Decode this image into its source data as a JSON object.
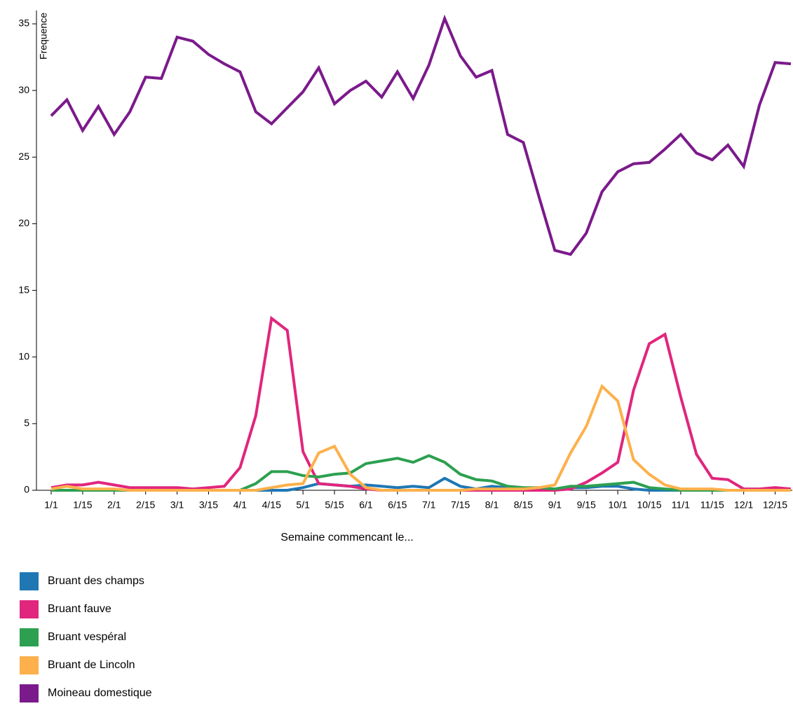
{
  "chart_data": {
    "type": "line",
    "x_label": "Semaine commencant le...",
    "y_label": "Frequence",
    "categories": [
      "1/1",
      null,
      "1/15",
      null,
      "2/1",
      null,
      "2/15",
      null,
      "3/1",
      null,
      "3/15",
      null,
      "4/1",
      null,
      "4/15",
      null,
      "5/1",
      null,
      "5/15",
      null,
      "6/1",
      null,
      "6/15",
      null,
      "7/1",
      null,
      "7/15",
      null,
      "8/1",
      null,
      "8/15",
      null,
      "9/1",
      null,
      "9/15",
      null,
      "10/1",
      null,
      "10/15",
      null,
      "11/1",
      null,
      "11/15",
      null,
      "12/1",
      null,
      "12/15",
      null
    ],
    "series": [
      {
        "name": "Bruant des champs",
        "color": "#1f77b4",
        "values": [
          0,
          0,
          0,
          0,
          0,
          0,
          0,
          0,
          0,
          0,
          0,
          0,
          0,
          0,
          0,
          0,
          0.2,
          0.5,
          0.4,
          0.3,
          0.4,
          0.3,
          0.2,
          0.3,
          0.2,
          0.9,
          0.3,
          0.1,
          0.3,
          0.2,
          0,
          0,
          0,
          0.2,
          0.2,
          0.3,
          0.3,
          0.1,
          0,
          0,
          0,
          0,
          0,
          0,
          0,
          0,
          0,
          0
        ]
      },
      {
        "name": "Bruant fauve",
        "color": "#e0267d",
        "values": [
          0.2,
          0.4,
          0.4,
          0.6,
          0.4,
          0.2,
          0.2,
          0.2,
          0.2,
          0.1,
          0.2,
          0.3,
          1.7,
          5.6,
          12.9,
          12.0,
          2.9,
          0.5,
          0.4,
          0.3,
          0.1,
          0,
          0,
          0,
          0,
          0,
          0,
          0,
          0,
          0,
          0,
          0,
          0,
          0.1,
          0.6,
          1.3,
          2.1,
          7.5,
          11.0,
          11.7,
          7.0,
          2.7,
          0.9,
          0.8,
          0.1,
          0.1,
          0.2,
          0.1
        ]
      },
      {
        "name": "Bruant vespéral",
        "color": "#2ca050",
        "values": [
          0,
          0,
          0,
          0,
          0,
          0,
          0,
          0,
          0,
          0,
          0,
          0,
          0,
          0.5,
          1.4,
          1.4,
          1.1,
          1.0,
          1.2,
          1.3,
          2.0,
          2.2,
          2.4,
          2.1,
          2.6,
          2.1,
          1.2,
          0.8,
          0.7,
          0.3,
          0.2,
          0.2,
          0.1,
          0.3,
          0.3,
          0.4,
          0.5,
          0.6,
          0.2,
          0.1,
          0,
          0,
          0,
          0,
          0,
          0,
          0,
          0
        ]
      },
      {
        "name": "Bruant de Lincoln",
        "color": "#fdb04b",
        "values": [
          0.1,
          0.3,
          0.1,
          0.1,
          0.1,
          0,
          0,
          0,
          0,
          0,
          0,
          0,
          0,
          0,
          0.2,
          0.4,
          0.5,
          2.8,
          3.3,
          1.2,
          0.2,
          0,
          0,
          0,
          0,
          0,
          0,
          0.1,
          0.1,
          0.1,
          0.1,
          0.2,
          0.4,
          2.8,
          4.8,
          7.8,
          6.7,
          2.3,
          1.2,
          0.4,
          0.1,
          0.1,
          0.1,
          0,
          0,
          0,
          0,
          0
        ]
      },
      {
        "name": "Moineau domestique",
        "color": "#7b1a8b",
        "values": [
          28.1,
          29.3,
          27.0,
          28.8,
          26.7,
          28.4,
          31.0,
          30.9,
          34.0,
          33.7,
          32.7,
          32.0,
          31.4,
          28.4,
          27.5,
          28.7,
          29.9,
          31.7,
          29.0,
          30.0,
          30.7,
          29.5,
          31.4,
          29.4,
          31.9,
          35.4,
          32.6,
          31.0,
          31.5,
          26.7,
          26.1,
          22.0,
          18.0,
          17.7,
          19.3,
          22.4,
          23.9,
          24.5,
          24.6,
          25.6,
          26.7,
          25.3,
          24.8,
          25.9,
          24.3,
          28.9,
          32.1,
          32.0
        ]
      }
    ],
    "ylim": [
      0,
      36
    ],
    "yticks": [
      0,
      5,
      10,
      15,
      20,
      25,
      30,
      35
    ],
    "grid": false
  }
}
